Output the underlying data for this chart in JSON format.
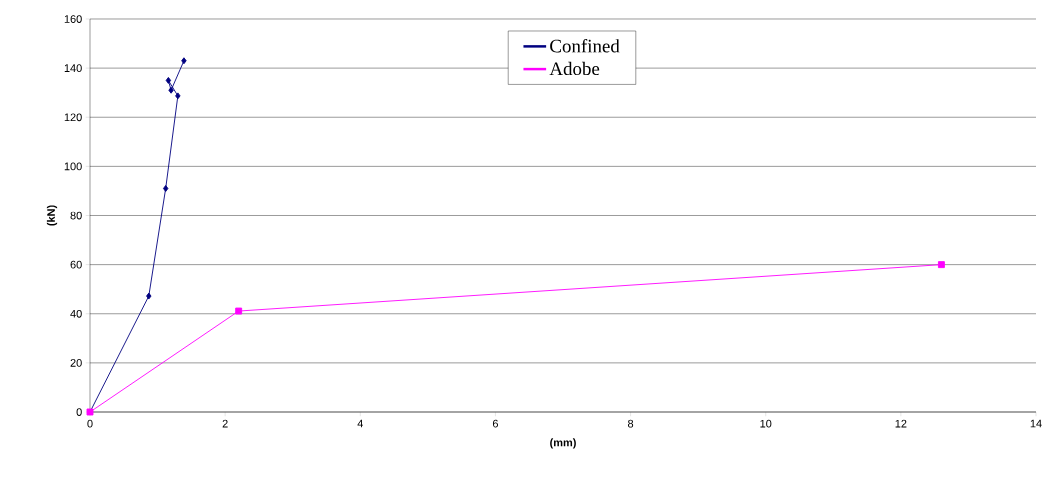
{
  "chart_data": {
    "type": "line",
    "xlabel": "(mm)",
    "ylabel": "(kN)",
    "xlim": [
      0,
      14
    ],
    "ylim": [
      0,
      160
    ],
    "xticks": [
      0,
      2,
      4,
      6,
      8,
      10,
      12,
      14
    ],
    "yticks": [
      0,
      20,
      40,
      60,
      80,
      100,
      120,
      140,
      160
    ],
    "grid": "y",
    "legend": "top",
    "series": [
      {
        "name": "Confined",
        "color": "#000080",
        "marker": "diamond",
        "x": [
          0,
          0.87,
          1.12,
          1.3,
          1.16,
          1.2,
          1.39
        ],
        "values": [
          0,
          47.2,
          91,
          128.7,
          135,
          131,
          143
        ]
      },
      {
        "name": "Adobe",
        "color": "#ff00ff",
        "marker": "square",
        "x": [
          0,
          2.2,
          12.6
        ],
        "values": [
          0,
          41.1,
          60
        ]
      }
    ]
  }
}
